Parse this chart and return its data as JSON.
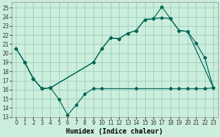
{
  "xlabel": "Humidex (Indice chaleur)",
  "background_color": "#cceedd",
  "grid_color": "#99ccbb",
  "line_color": "#006655",
  "xlim": [
    -0.5,
    23.5
  ],
  "ylim": [
    13,
    25.6
  ],
  "yticks": [
    13,
    14,
    15,
    16,
    17,
    18,
    19,
    20,
    21,
    22,
    23,
    24,
    25
  ],
  "xticks": [
    0,
    1,
    2,
    3,
    4,
    5,
    6,
    7,
    8,
    9,
    10,
    11,
    12,
    13,
    14,
    15,
    16,
    17,
    18,
    19,
    20,
    21,
    22,
    23
  ],
  "curve1_x": [
    0,
    1,
    2,
    3,
    4,
    5,
    6,
    7,
    8,
    9,
    10,
    14,
    18,
    19,
    20,
    21,
    22,
    23
  ],
  "curve1_y": [
    20.5,
    19.0,
    17.2,
    16.1,
    16.2,
    14.9,
    13.2,
    14.3,
    15.5,
    16.1,
    16.1,
    16.1,
    16.1,
    16.1,
    16.1,
    16.1,
    16.1,
    16.2
  ],
  "curve2_x": [
    0,
    1,
    2,
    3,
    4,
    9,
    10,
    11,
    12,
    13,
    14,
    15,
    16,
    17,
    18,
    19,
    20,
    21,
    22,
    23
  ],
  "curve2_y": [
    20.5,
    19.0,
    17.2,
    16.1,
    16.2,
    19.0,
    20.5,
    21.7,
    21.6,
    22.2,
    22.5,
    23.7,
    23.8,
    25.1,
    23.8,
    22.5,
    22.4,
    21.1,
    19.5,
    16.2
  ],
  "curve3_x": [
    1,
    2,
    3,
    4,
    9,
    10,
    11,
    12,
    13,
    14,
    15,
    16,
    17,
    18,
    19,
    20,
    23
  ],
  "curve3_y": [
    19.0,
    17.2,
    16.1,
    16.2,
    19.0,
    20.5,
    21.7,
    21.6,
    22.2,
    22.5,
    23.7,
    23.8,
    23.9,
    23.8,
    22.5,
    22.4,
    16.2
  ],
  "xlabel_fontsize": 7,
  "tick_fontsize": 5.5
}
